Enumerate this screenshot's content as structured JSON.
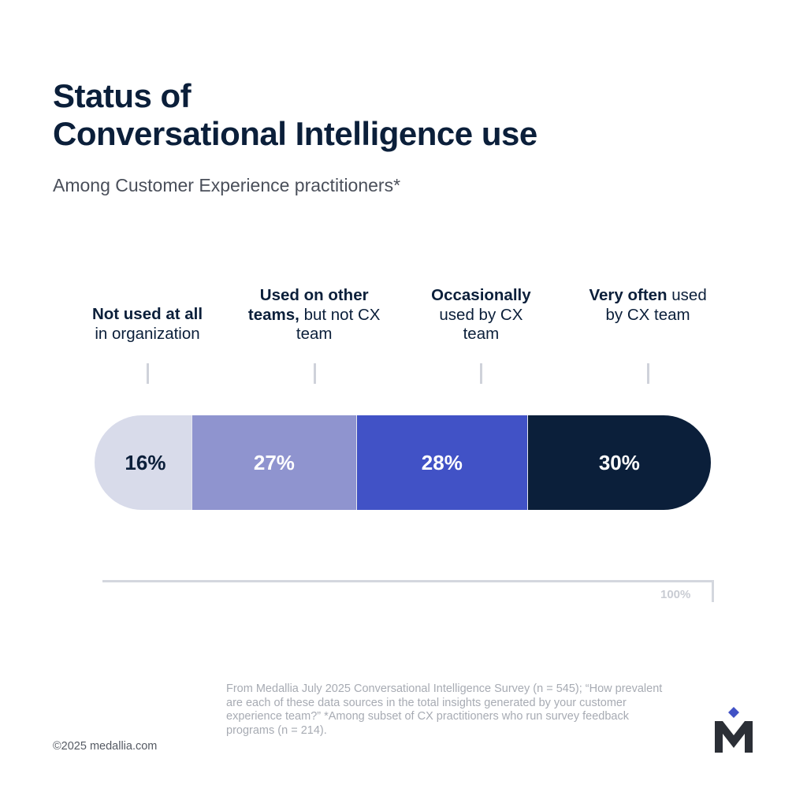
{
  "title_lines": [
    "Status of",
    "Conversational Intelligence use"
  ],
  "subtitle": "Among Customer Experience practitioners*",
  "chart_data": {
    "type": "bar",
    "orientation": "horizontal-stacked",
    "categories": [
      {
        "bold": "Not used at all",
        "regular": "in organization"
      },
      {
        "bold": "Used on other teams,",
        "regular": "but not CX team"
      },
      {
        "bold": "Occasionally",
        "regular": "used by CX team"
      },
      {
        "bold": "Very often",
        "regular": "used by CX team"
      }
    ],
    "values": [
      16,
      27,
      28,
      30
    ],
    "data_labels": [
      "16%",
      "27%",
      "28%",
      "30%"
    ],
    "colors": [
      "#d8dbea",
      "#8f94cf",
      "#4152c6",
      "#0b1f3a"
    ],
    "label_colors": [
      "#0b1f3a",
      "#ffffff",
      "#ffffff",
      "#ffffff"
    ],
    "axis_max_label": "100%",
    "xlim": [
      0,
      100
    ]
  },
  "source": "From Medallia July 2025 Conversational Intelligence Survey (n = 545); “How prevalent are each of these data sources in the total insights generated by your customer experience team?” *Among subset of CX practitioners who run survey feedback programs (n = 214).",
  "copyright": "©2025 medallia.com",
  "logo": "M"
}
